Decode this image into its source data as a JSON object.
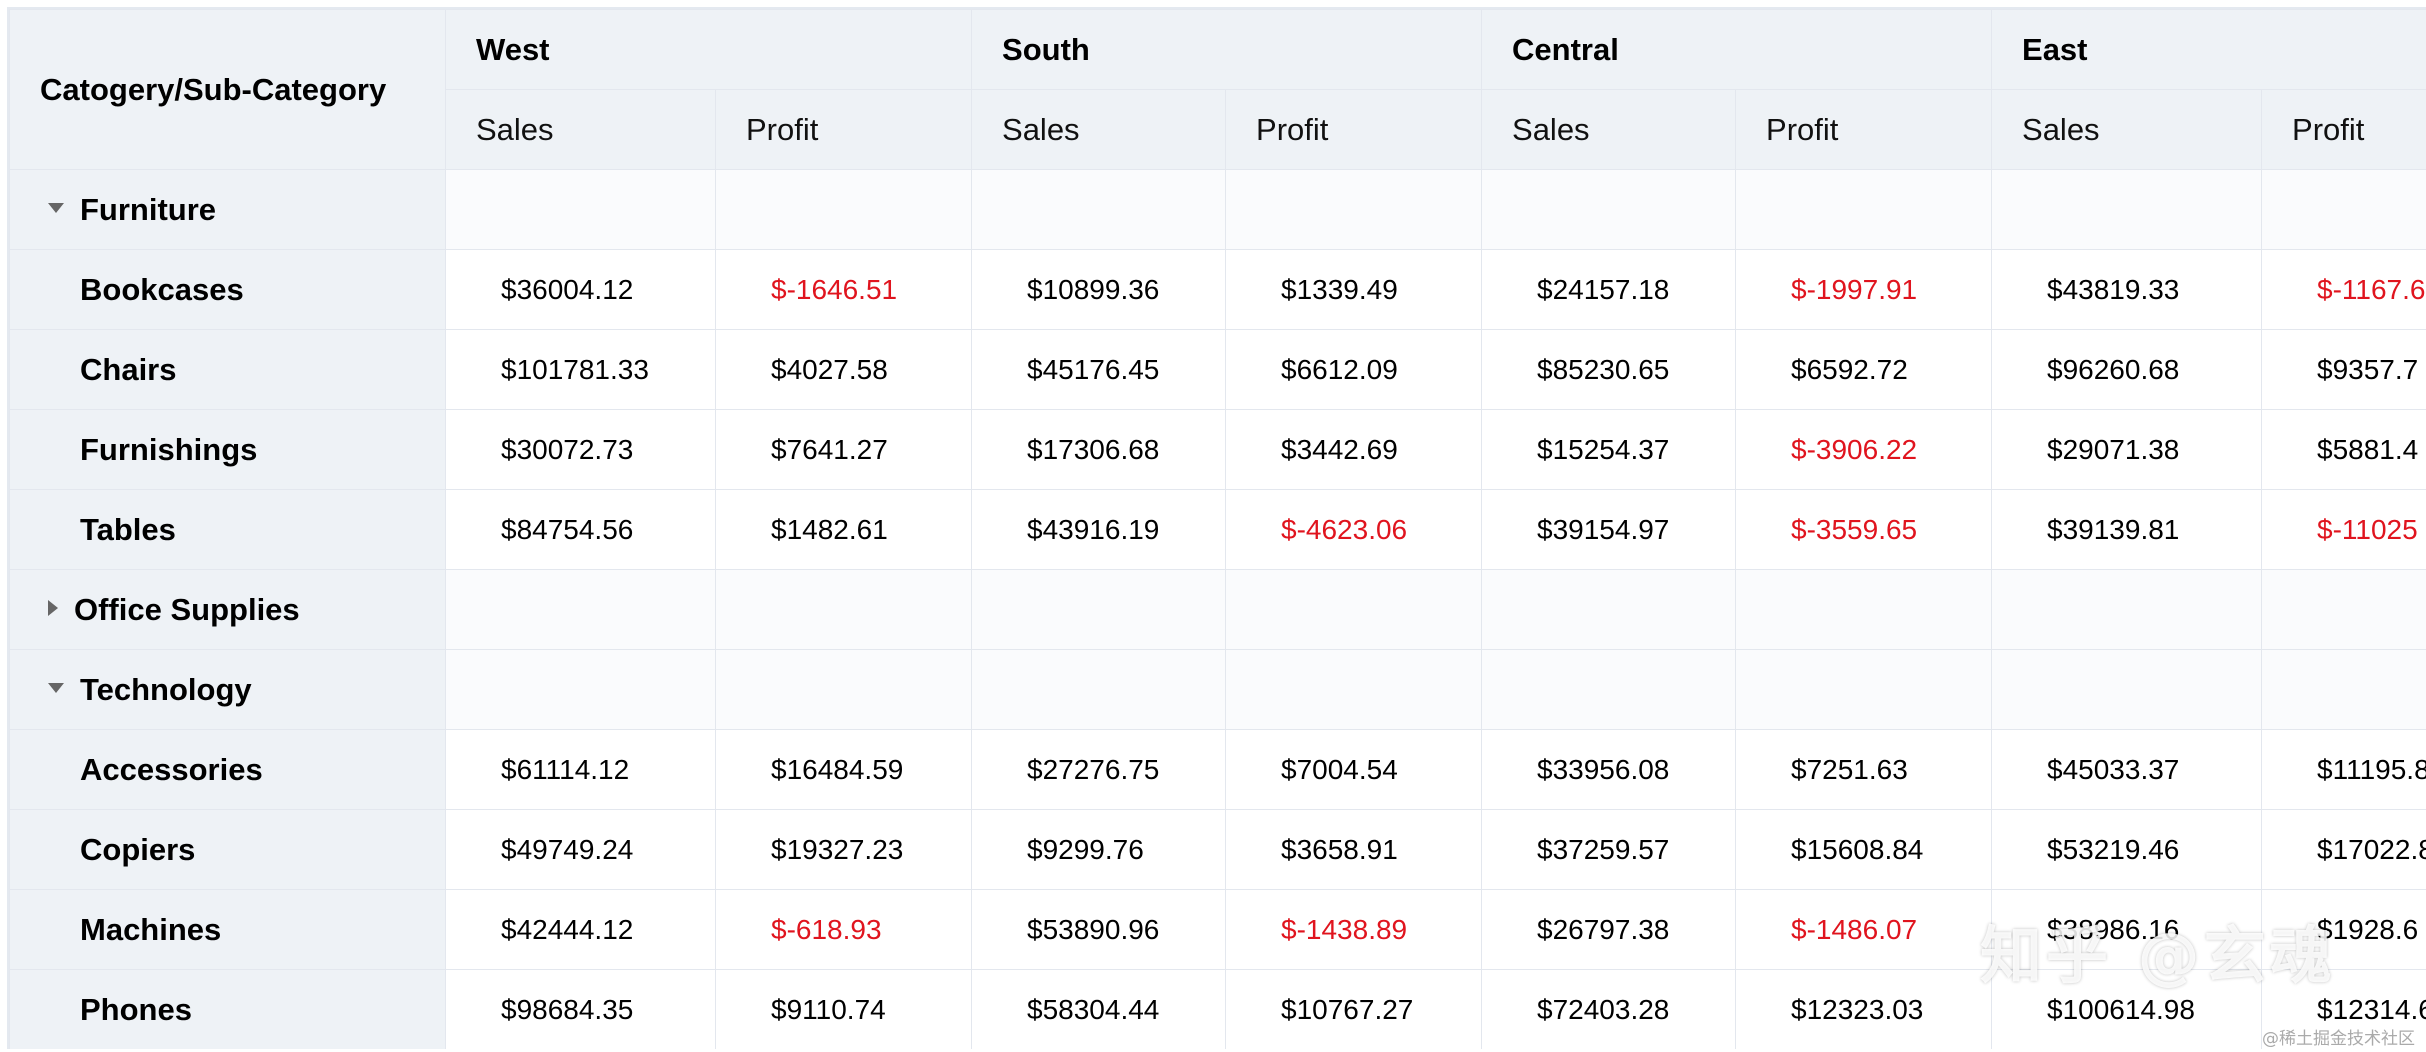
{
  "header": {
    "corner_label": "Catogery/Sub-Category",
    "regions": [
      "West",
      "South",
      "Central",
      "East"
    ],
    "metrics": [
      "Sales",
      "Profit"
    ]
  },
  "colors": {
    "negative": "#e0141e",
    "header_bg": "#eef2f6",
    "border": "#e3e7ee"
  },
  "rows": [
    {
      "label": "Furniture",
      "type": "category",
      "expanded": true,
      "values": []
    },
    {
      "label": "Bookcases",
      "type": "sub",
      "values": [
        "$36004.12",
        "$-1646.51",
        "$10899.36",
        "$1339.49",
        "$24157.18",
        "$-1997.91",
        "$43819.33",
        "$-1167.6"
      ]
    },
    {
      "label": "Chairs",
      "type": "sub",
      "values": [
        "$101781.33",
        "$4027.58",
        "$45176.45",
        "$6612.09",
        "$85230.65",
        "$6592.72",
        "$96260.68",
        "$9357.7"
      ]
    },
    {
      "label": "Furnishings",
      "type": "sub",
      "values": [
        "$30072.73",
        "$7641.27",
        "$17306.68",
        "$3442.69",
        "$15254.37",
        "$-3906.22",
        "$29071.38",
        "$5881.4"
      ]
    },
    {
      "label": "Tables",
      "type": "sub",
      "values": [
        "$84754.56",
        "$1482.61",
        "$43916.19",
        "$-4623.06",
        "$39154.97",
        "$-3559.65",
        "$39139.81",
        "$-11025"
      ]
    },
    {
      "label": "Office Supplies",
      "type": "category",
      "expanded": false,
      "values": []
    },
    {
      "label": "Technology",
      "type": "category",
      "expanded": true,
      "values": []
    },
    {
      "label": "Accessories",
      "type": "sub",
      "values": [
        "$61114.12",
        "$16484.59",
        "$27276.75",
        "$7004.54",
        "$33956.08",
        "$7251.63",
        "$45033.37",
        "$11195.8"
      ]
    },
    {
      "label": "Copiers",
      "type": "sub",
      "values": [
        "$49749.24",
        "$19327.23",
        "$9299.76",
        "$3658.91",
        "$37259.57",
        "$15608.84",
        "$53219.46",
        "$17022.8"
      ]
    },
    {
      "label": "Machines",
      "type": "sub",
      "values": [
        "$42444.12",
        "$-618.93",
        "$53890.96",
        "$-1438.89",
        "$26797.38",
        "$-1486.07",
        "$38986.16",
        "$1928.6"
      ]
    },
    {
      "label": "Phones",
      "type": "sub",
      "values": [
        "$98684.35",
        "$9110.74",
        "$58304.44",
        "$10767.27",
        "$72403.28",
        "$12323.03",
        "$100614.98",
        "$12314.6"
      ]
    }
  ],
  "watermark": {
    "text": "知乎 @玄魂",
    "site": "@稀土掘金技术社区"
  }
}
